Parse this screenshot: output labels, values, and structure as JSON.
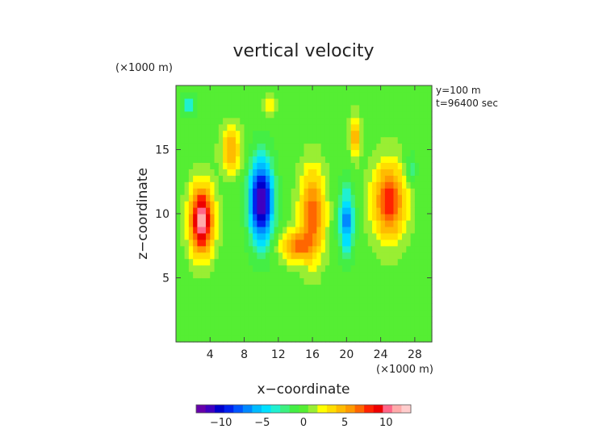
{
  "chart_data": {
    "type": "heatmap",
    "title": "vertical velocity",
    "xlabel": "x−coordinate",
    "ylabel": "z−coordinate",
    "x_unit": "(×1000 m)",
    "y_unit": "(×1000 m)",
    "annotations": [
      "y=100 m",
      "t=96400 sec"
    ],
    "xlim": [
      0,
      30
    ],
    "ylim": [
      0,
      20
    ],
    "x_ticks": [
      4,
      8,
      12,
      16,
      20,
      24,
      28
    ],
    "x_tick_labels": [
      "4",
      "8",
      "12",
      "16",
      "20",
      "24",
      "28"
    ],
    "y_ticks": [
      5,
      10,
      15
    ],
    "y_tick_labels": [
      "5",
      "10",
      "15"
    ],
    "colorbar": {
      "vmin": -13,
      "vmax": 13,
      "ticks": [
        -10,
        -5,
        0,
        5,
        10
      ],
      "tick_labels": [
        "−10",
        "−5",
        "0",
        "5",
        "10"
      ],
      "colors": [
        "#6600aa",
        "#3f00c0",
        "#0000cc",
        "#0022ee",
        "#0055ff",
        "#0088ff",
        "#00bbff",
        "#00e0ff",
        "#20f0d0",
        "#3cf080",
        "#44ee44",
        "#55ee33",
        "#99ee33",
        "#ffff00",
        "#ffdd00",
        "#ffbb00",
        "#ff9900",
        "#ff6600",
        "#ff2200",
        "#ee0000",
        "#ff6688",
        "#ffaaaa",
        "#ffcccc"
      ]
    },
    "field_features": [
      {
        "x": 3,
        "z": 9.5,
        "w": 12,
        "sx": 1.4,
        "sz": 2.6
      },
      {
        "x": 10,
        "z": 11,
        "w": -12,
        "sx": 1.4,
        "sz": 3.2
      },
      {
        "x": 6.5,
        "z": 15,
        "w": 5,
        "sx": 1.2,
        "sz": 1.8
      },
      {
        "x": 16,
        "z": 10,
        "w": 7,
        "sx": 1.5,
        "sz": 3.5
      },
      {
        "x": 14,
        "z": 7.5,
        "w": 6,
        "sx": 1.8,
        "sz": 1.2
      },
      {
        "x": 20,
        "z": 9.5,
        "w": -7,
        "sx": 0.9,
        "sz": 2.5
      },
      {
        "x": 25,
        "z": 11,
        "w": 8,
        "sx": 2.0,
        "sz": 3.0
      },
      {
        "x": 1.5,
        "z": 18.5,
        "w": -4,
        "sx": 0.8,
        "sz": 0.8
      },
      {
        "x": 11,
        "z": 18.5,
        "w": 3,
        "sx": 1.0,
        "sz": 0.7
      },
      {
        "x": 21,
        "z": 16,
        "w": 5,
        "sx": 0.6,
        "sz": 1.6
      },
      {
        "x": 27.5,
        "z": 13.5,
        "w": -3,
        "sx": 0.7,
        "sz": 1.2
      }
    ]
  }
}
